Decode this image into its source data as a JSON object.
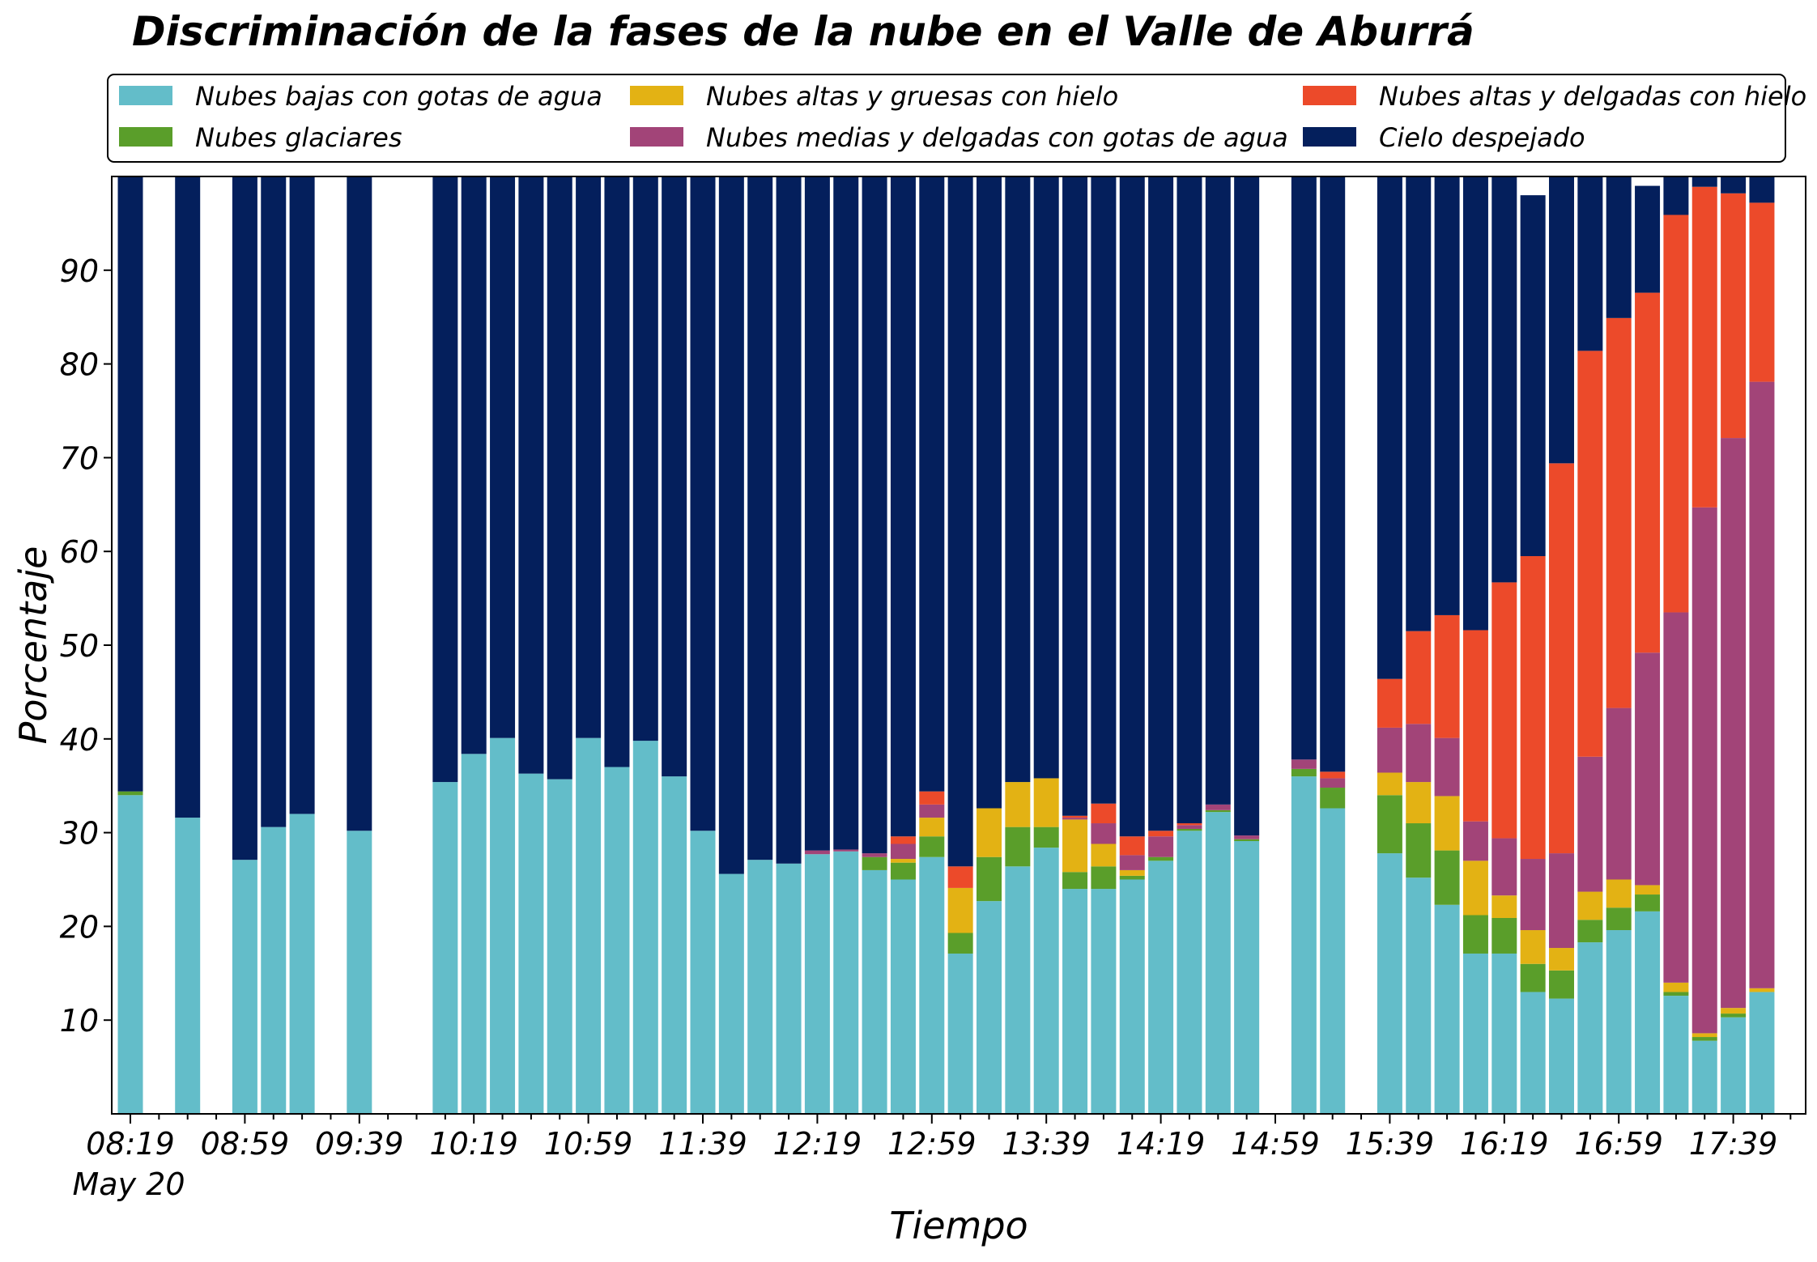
{
  "chart_data": {
    "type": "bar",
    "stacked": true,
    "title": "Discriminación de la fases de la nube en el Valle de Aburrá",
    "xlabel": "Tiempo",
    "ylabel": "Porcentaje",
    "ylim": [
      0,
      100
    ],
    "yticks": [
      10,
      20,
      30,
      40,
      50,
      60,
      70,
      80,
      90
    ],
    "xticks": [
      "08:19",
      "08:59",
      "09:39",
      "10:19",
      "10:59",
      "11:39",
      "12:19",
      "12:59",
      "13:39",
      "14:19",
      "14:59",
      "15:39",
      "16:19",
      "16:59",
      "17:39"
    ],
    "xtick_sublabel": "May 20",
    "grid": false,
    "legend_position": "top",
    "x_interval_minutes": 10,
    "x_start": "08:19",
    "categories": [
      "08:19",
      "08:29",
      "08:39",
      "08:49",
      "08:59",
      "09:09",
      "09:19",
      "09:29",
      "09:39",
      "09:49",
      "09:59",
      "10:09",
      "10:19",
      "10:29",
      "10:39",
      "10:49",
      "10:59",
      "11:09",
      "11:19",
      "11:29",
      "11:39",
      "11:49",
      "11:59",
      "12:09",
      "12:19",
      "12:29",
      "12:39",
      "12:49",
      "12:59",
      "13:09",
      "13:19",
      "13:29",
      "13:39",
      "13:49",
      "13:59",
      "14:09",
      "14:19",
      "14:29",
      "14:39",
      "14:49",
      "14:59",
      "15:09",
      "15:19",
      "15:29",
      "15:39",
      "15:49",
      "15:59",
      "16:09",
      "16:19",
      "16:29",
      "16:39",
      "16:49",
      "16:59",
      "17:09",
      "17:19",
      "17:29",
      "17:39",
      "17:49"
    ],
    "series": [
      {
        "name": "Nubes bajas con gotas de agua",
        "color": "#63bdc9",
        "values": [
          34,
          null,
          31.6,
          null,
          27.1,
          30.6,
          32,
          null,
          30.2,
          null,
          null,
          35.4,
          38.4,
          40.1,
          36.3,
          35.7,
          40.1,
          37,
          39.8,
          36,
          30.2,
          25.6,
          27.1,
          26.7,
          27.7,
          28,
          26,
          25,
          27.4,
          17.1,
          22.7,
          26.4,
          28.4,
          24,
          24,
          25,
          27,
          30.2,
          32.2,
          29.1,
          null,
          36,
          32.6,
          null,
          27.8,
          25.2,
          22.3,
          17.1,
          17.1,
          13,
          12.3,
          18.3,
          19.6,
          21.6,
          12.6,
          7.8,
          10.3,
          13
        ]
      },
      {
        "name": "Nubes glaciares",
        "color": "#5a9e2a",
        "values": [
          0.4,
          null,
          0,
          null,
          0,
          0,
          0,
          null,
          0,
          null,
          null,
          0,
          0,
          0,
          0,
          0,
          0,
          0,
          0,
          0,
          0,
          0,
          0,
          0,
          0,
          0,
          1.4,
          1.8,
          2.2,
          2.2,
          4.7,
          4.2,
          2.2,
          1.8,
          2.4,
          0.4,
          0.4,
          0.2,
          0.2,
          0.2,
          null,
          0.8,
          2.2,
          null,
          6.2,
          5.8,
          5.8,
          4.1,
          3.8,
          3,
          3,
          2.4,
          2.4,
          1.8,
          0.4,
          0.4,
          0.4,
          0
        ]
      },
      {
        "name": "Nubes altas y gruesas con hielo",
        "color": "#e3b214",
        "values": [
          0,
          null,
          0,
          null,
          0,
          0,
          0,
          null,
          0,
          null,
          null,
          0,
          0,
          0,
          0,
          0,
          0,
          0,
          0,
          0,
          0,
          0,
          0,
          0,
          0,
          0,
          0,
          0.4,
          2,
          4.8,
          5.2,
          4.8,
          5.2,
          5.6,
          2.4,
          0.6,
          0,
          0,
          0,
          0,
          null,
          0,
          0,
          null,
          2.4,
          4.4,
          5.8,
          5.8,
          2.4,
          3.6,
          2.4,
          3,
          3,
          1,
          1,
          0.4,
          0.6,
          0.4
        ]
      },
      {
        "name": "Nubes medias y delgadas con gotas de agua",
        "color": "#a24478",
        "values": [
          0,
          null,
          0,
          null,
          0,
          0,
          0,
          null,
          0,
          null,
          null,
          0,
          0,
          0,
          0,
          0,
          0,
          0,
          0,
          0,
          0,
          0,
          0,
          0,
          0.4,
          0.2,
          0.4,
          1.6,
          1.4,
          0,
          0,
          0,
          0,
          0.2,
          2.2,
          1.6,
          2.2,
          0.4,
          0.6,
          0.4,
          null,
          1,
          1,
          null,
          4.8,
          6.2,
          6.2,
          4.2,
          6.1,
          7.6,
          10.1,
          14.4,
          18.3,
          24.8,
          39.5,
          56.1,
          60.8,
          64.7
        ]
      },
      {
        "name": "Nubes altas y delgadas con hielo",
        "color": "#ec4a2a",
        "values": [
          0,
          null,
          0,
          null,
          0,
          0,
          0,
          null,
          0,
          null,
          null,
          0,
          0,
          0,
          0,
          0,
          0,
          0,
          0,
          0,
          0,
          0,
          0,
          0,
          0,
          0,
          0,
          0.8,
          1.4,
          2.3,
          0,
          0,
          0,
          0.2,
          2.1,
          2,
          0.6,
          0.2,
          0,
          0,
          null,
          0,
          0.7,
          null,
          5.2,
          9.9,
          13.1,
          20.4,
          27.3,
          32.3,
          41.6,
          43.3,
          41.6,
          38.4,
          42.4,
          34.2,
          26.1,
          19.1
        ]
      },
      {
        "name": "Cielo despejado",
        "color": "#041f5c",
        "values": [
          65.6,
          null,
          68.4,
          null,
          72.9,
          69.4,
          68,
          null,
          69.8,
          null,
          null,
          64.6,
          61.6,
          59.9,
          63.7,
          64.3,
          59.9,
          63,
          60.2,
          64,
          69.8,
          74.4,
          72.9,
          73.3,
          71.9,
          71.8,
          72.2,
          70.4,
          65.6,
          73.6,
          67.4,
          64.6,
          64.2,
          68.2,
          66.9,
          70.4,
          69.8,
          69,
          67,
          70.3,
          null,
          62.2,
          63.5,
          null,
          53.6,
          48.5,
          46.8,
          48.4,
          43.3,
          38.5,
          30.6,
          18.6,
          15.1,
          11.4,
          4.1,
          1.1,
          1.8,
          2.8
        ]
      }
    ]
  }
}
